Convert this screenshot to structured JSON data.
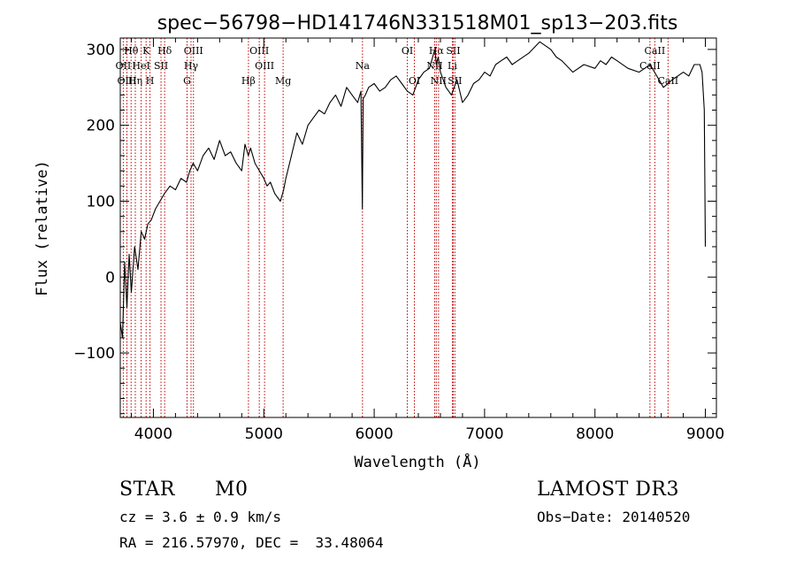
{
  "chart_data": {
    "type": "line",
    "title": "spec−56798−HD141746N331518M01_sp13−203.fits",
    "xlabel": "Wavelength (Å)",
    "ylabel": "Flux (relative)",
    "xlim": [
      3700,
      9100
    ],
    "ylim": [
      -185,
      315
    ],
    "xticks": [
      4000,
      5000,
      6000,
      7000,
      8000,
      9000
    ],
    "xtick_labels": [
      "4000",
      "5000",
      "6000",
      "7000",
      "8000",
      "9000"
    ],
    "yticks": [
      -100,
      0,
      100,
      200,
      300
    ],
    "ytick_labels": [
      "−100",
      "0",
      "100",
      "200",
      "300"
    ],
    "series": [
      {
        "name": "flux",
        "x": [
          3700,
          3720,
          3740,
          3760,
          3780,
          3800,
          3830,
          3860,
          3890,
          3920,
          3950,
          3980,
          4020,
          4060,
          4100,
          4150,
          4200,
          4250,
          4300,
          4330,
          4360,
          4400,
          4450,
          4500,
          4550,
          4600,
          4650,
          4700,
          4750,
          4800,
          4830,
          4860,
          4880,
          4920,
          4960,
          5000,
          5030,
          5060,
          5100,
          5150,
          5180,
          5200,
          5250,
          5300,
          5350,
          5400,
          5450,
          5500,
          5550,
          5600,
          5650,
          5700,
          5750,
          5800,
          5850,
          5880,
          5893,
          5900,
          5920,
          5950,
          6000,
          6050,
          6100,
          6150,
          6200,
          6250,
          6300,
          6350,
          6400,
          6450,
          6500,
          6550,
          6563,
          6580,
          6600,
          6650,
          6700,
          6750,
          6800,
          6850,
          6900,
          6950,
          7000,
          7050,
          7100,
          7150,
          7200,
          7250,
          7300,
          7400,
          7500,
          7550,
          7600,
          7650,
          7700,
          7800,
          7900,
          8000,
          8050,
          8100,
          8150,
          8200,
          8300,
          8400,
          8450,
          8500,
          8540,
          8580,
          8620,
          8660,
          8700,
          8750,
          8800,
          8850,
          8900,
          8950,
          8970,
          8990,
          9000
        ],
        "y": [
          -60,
          -80,
          20,
          -40,
          30,
          -20,
          40,
          10,
          60,
          50,
          70,
          75,
          90,
          100,
          110,
          120,
          115,
          130,
          125,
          140,
          150,
          140,
          160,
          170,
          155,
          180,
          160,
          165,
          150,
          140,
          175,
          160,
          170,
          150,
          140,
          130,
          120,
          125,
          110,
          100,
          115,
          130,
          160,
          190,
          175,
          200,
          210,
          220,
          215,
          230,
          240,
          225,
          250,
          240,
          230,
          245,
          90,
          235,
          240,
          250,
          255,
          245,
          250,
          260,
          265,
          255,
          245,
          240,
          260,
          270,
          275,
          300,
          280,
          290,
          270,
          250,
          240,
          260,
          230,
          240,
          255,
          260,
          270,
          265,
          280,
          285,
          290,
          280,
          285,
          295,
          310,
          305,
          300,
          290,
          285,
          270,
          280,
          275,
          285,
          280,
          290,
          285,
          275,
          270,
          275,
          280,
          270,
          260,
          250,
          255,
          260,
          265,
          270,
          265,
          280,
          280,
          270,
          220,
          40
        ]
      }
    ],
    "line_markers": [
      {
        "name": "Hθ",
        "x": 3798,
        "row": 1
      },
      {
        "name": "OII",
        "x": 3727,
        "row": 2
      },
      {
        "name": "OIII",
        "x": 3760,
        "row": 3
      },
      {
        "name": "Hη",
        "x": 3836,
        "row": 3
      },
      {
        "name": "K",
        "x": 3934,
        "row": 1
      },
      {
        "name": "HeI",
        "x": 3889,
        "row": 2
      },
      {
        "name": "SII",
        "x": 4069,
        "row": 2
      },
      {
        "name": "H",
        "x": 3969,
        "row": 3
      },
      {
        "name": "Hδ",
        "x": 4102,
        "row": 1
      },
      {
        "name": "OIII",
        "x": 4363,
        "row": 1
      },
      {
        "name": "Hγ",
        "x": 4341,
        "row": 2
      },
      {
        "name": "G",
        "x": 4305,
        "row": 3
      },
      {
        "name": "OIII",
        "x": 4959,
        "row": 1
      },
      {
        "name": "OIII",
        "x": 5007,
        "row": 2
      },
      {
        "name": "Hβ",
        "x": 4861,
        "row": 3
      },
      {
        "name": "Mg",
        "x": 5175,
        "row": 3
      },
      {
        "name": "Na",
        "x": 5894,
        "row": 2
      },
      {
        "name": "OI",
        "x": 6300,
        "row": 1
      },
      {
        "name": "OI",
        "x": 6364,
        "row": 3
      },
      {
        "name": "Hα",
        "x": 6563,
        "row": 1
      },
      {
        "name": "SII",
        "x": 6716,
        "row": 1
      },
      {
        "name": "NII",
        "x": 6548,
        "row": 2
      },
      {
        "name": "Li",
        "x": 6708,
        "row": 2
      },
      {
        "name": "NII",
        "x": 6583,
        "row": 3
      },
      {
        "name": "SII",
        "x": 6731,
        "row": 3
      },
      {
        "name": "CaII",
        "x": 8542,
        "row": 1
      },
      {
        "name": "CaII",
        "x": 8498,
        "row": 2
      },
      {
        "name": "CaII",
        "x": 8662,
        "row": 3
      }
    ]
  },
  "info": {
    "object_class": "STAR",
    "subclass": "M0",
    "survey": "LAMOST DR3",
    "redshift": "cz = 3.6 ± 0.9 km/s",
    "obs_date": "Obs−Date: 20140520",
    "coords": "RA = 216.57970, DEC =  33.48064"
  },
  "colors": {
    "marker_line": "#c00000",
    "spectrum": "#000000",
    "axes": "#000000"
  }
}
